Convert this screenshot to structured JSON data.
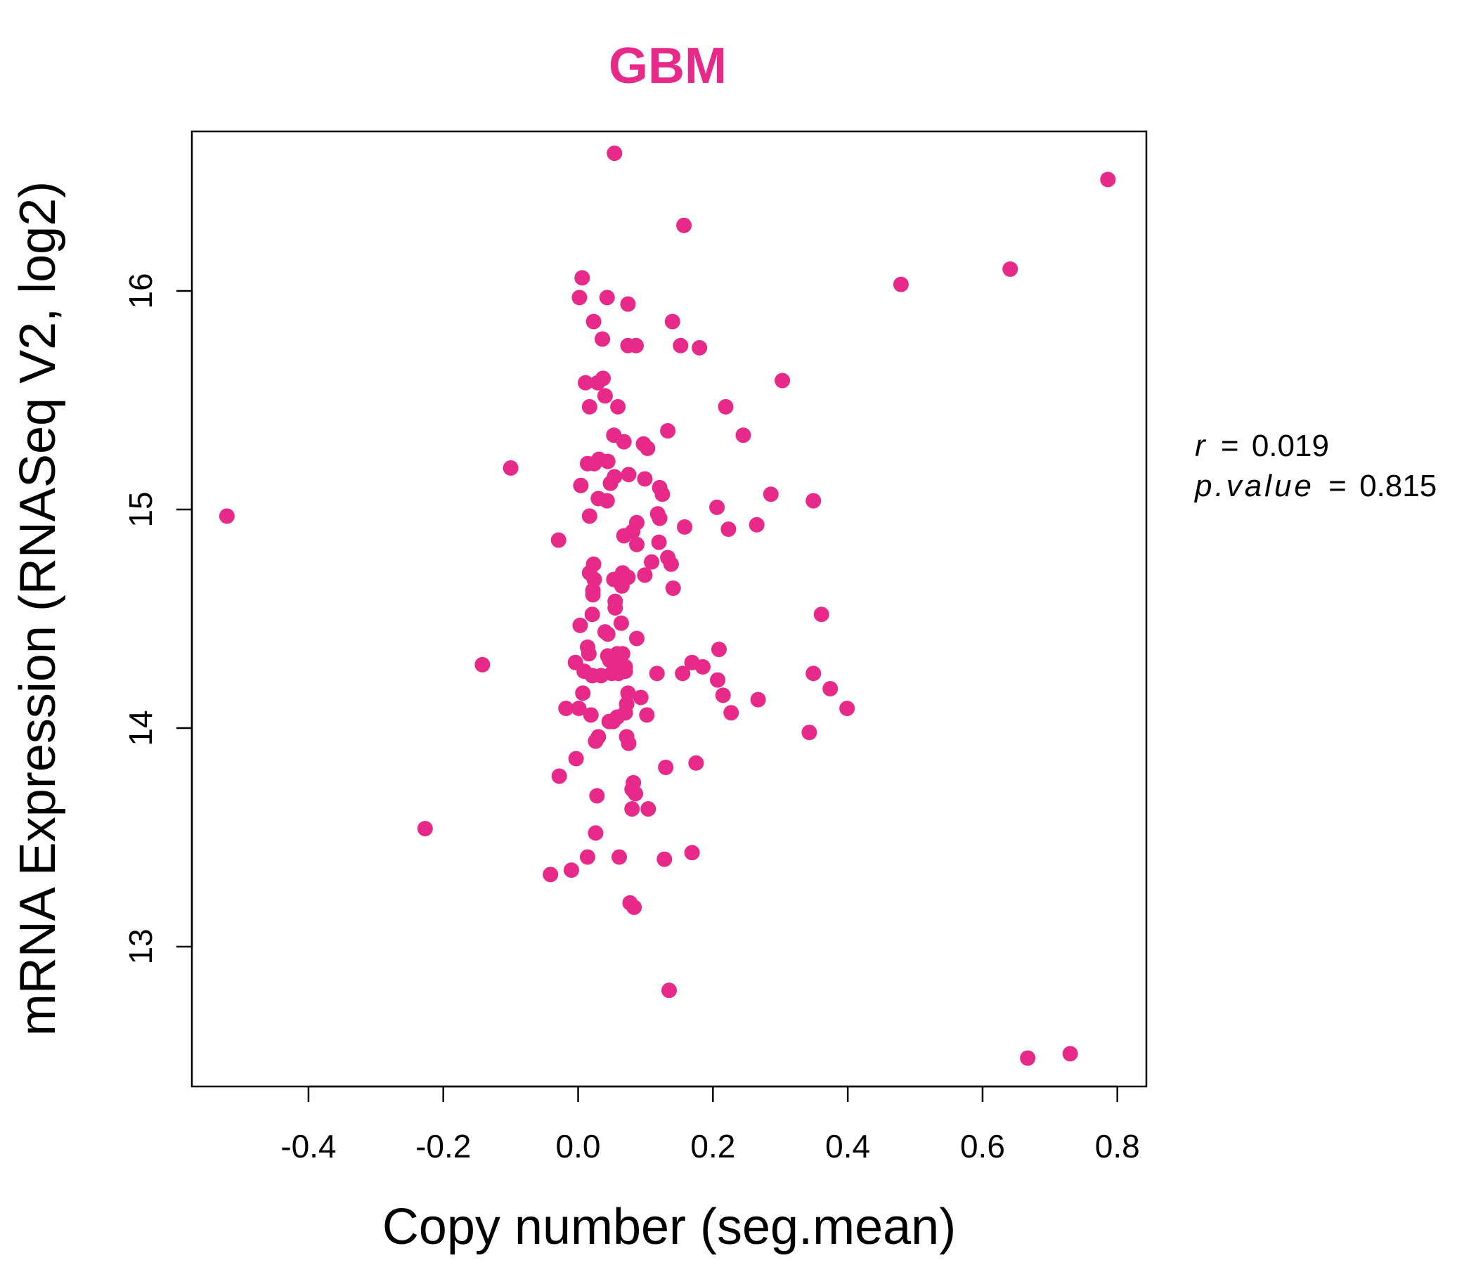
{
  "chart_data": {
    "type": "scatter",
    "title": "GBM",
    "xlabel": "Copy number (seg.mean)",
    "ylabel": "mRNA Expression (RNASeq V2, log2)",
    "xlim": [
      -0.573,
      0.843
    ],
    "ylim": [
      12.36,
      16.73
    ],
    "xticks": [
      -0.4,
      -0.2,
      0.0,
      0.2,
      0.4,
      0.6,
      0.8
    ],
    "xtick_labels": [
      "-0.4",
      "-0.2",
      "0.0",
      "0.2",
      "0.4",
      "0.6",
      "0.8"
    ],
    "yticks": [
      13,
      14,
      15,
      16
    ],
    "ytick_labels": [
      "13",
      "14",
      "15",
      "16"
    ],
    "grid": false,
    "legend": null,
    "point_color": "#e7298a",
    "stats": {
      "r_label": "r",
      "r_value": "0.019",
      "p_label": "p.value",
      "p_value": "0.815"
    },
    "points": [
      [
        0.054,
        16.63
      ],
      [
        0.786,
        16.51
      ],
      [
        0.157,
        16.3
      ],
      [
        0.641,
        16.1
      ],
      [
        0.479,
        16.03
      ],
      [
        0.006,
        16.06
      ],
      [
        0.002,
        15.97
      ],
      [
        0.043,
        15.97
      ],
      [
        0.074,
        15.94
      ],
      [
        0.023,
        15.86
      ],
      [
        0.14,
        15.86
      ],
      [
        0.036,
        15.78
      ],
      [
        0.074,
        15.75
      ],
      [
        0.086,
        15.75
      ],
      [
        0.152,
        15.75
      ],
      [
        0.18,
        15.74
      ],
      [
        0.303,
        15.59
      ],
      [
        0.011,
        15.58
      ],
      [
        0.029,
        15.58
      ],
      [
        0.037,
        15.6
      ],
      [
        0.04,
        15.52
      ],
      [
        0.017,
        15.47
      ],
      [
        0.059,
        15.47
      ],
      [
        0.219,
        15.47
      ],
      [
        0.133,
        15.36
      ],
      [
        0.053,
        15.34
      ],
      [
        0.068,
        15.31
      ],
      [
        0.097,
        15.3
      ],
      [
        0.103,
        15.28
      ],
      [
        0.245,
        15.34
      ],
      [
        -0.1,
        15.19
      ],
      [
        0.014,
        15.21
      ],
      [
        0.024,
        15.21
      ],
      [
        0.031,
        15.23
      ],
      [
        0.044,
        15.22
      ],
      [
        0.054,
        15.15
      ],
      [
        0.075,
        15.16
      ],
      [
        0.099,
        15.14
      ],
      [
        0.004,
        15.11
      ],
      [
        0.048,
        15.12
      ],
      [
        0.121,
        15.1
      ],
      [
        0.125,
        15.07
      ],
      [
        0.286,
        15.07
      ],
      [
        0.03,
        15.05
      ],
      [
        0.043,
        15.04
      ],
      [
        0.206,
        15.01
      ],
      [
        0.349,
        15.04
      ],
      [
        0.017,
        14.97
      ],
      [
        0.118,
        14.98
      ],
      [
        0.121,
        14.96
      ],
      [
        0.087,
        14.94
      ],
      [
        0.158,
        14.92
      ],
      [
        0.223,
        14.91
      ],
      [
        0.265,
        14.93
      ],
      [
        0.081,
        14.9
      ],
      [
        0.068,
        14.88
      ],
      [
        -0.029,
        14.86
      ],
      [
        0.087,
        14.84
      ],
      [
        0.12,
        14.85
      ],
      [
        0.023,
        14.75
      ],
      [
        0.109,
        14.76
      ],
      [
        0.133,
        14.78
      ],
      [
        0.138,
        14.75
      ],
      [
        0.017,
        14.71
      ],
      [
        0.066,
        14.71
      ],
      [
        0.074,
        14.69
      ],
      [
        0.099,
        14.7
      ],
      [
        0.053,
        14.68
      ],
      [
        0.024,
        14.68
      ],
      [
        0.065,
        14.65
      ],
      [
        0.022,
        14.63
      ],
      [
        0.141,
        14.64
      ],
      [
        0.022,
        14.61
      ],
      [
        0.055,
        14.58
      ],
      [
        0.055,
        14.55
      ],
      [
        0.361,
        14.52
      ],
      [
        0.021,
        14.52
      ],
      [
        0.064,
        14.48
      ],
      [
        0.003,
        14.47
      ],
      [
        0.04,
        14.44
      ],
      [
        0.044,
        14.43
      ],
      [
        0.087,
        14.41
      ],
      [
        0.014,
        14.37
      ],
      [
        0.209,
        14.36
      ],
      [
        0.016,
        14.34
      ],
      [
        0.044,
        14.33
      ],
      [
        0.058,
        14.34
      ],
      [
        0.066,
        14.34
      ],
      [
        0.047,
        14.31
      ],
      [
        -0.004,
        14.3
      ],
      [
        -0.142,
        14.29
      ],
      [
        0.06,
        14.29
      ],
      [
        0.07,
        14.28
      ],
      [
        0.169,
        14.3
      ],
      [
        0.185,
        14.28
      ],
      [
        0.009,
        14.26
      ],
      [
        0.021,
        14.24
      ],
      [
        0.034,
        14.24
      ],
      [
        0.05,
        14.25
      ],
      [
        0.06,
        14.25
      ],
      [
        0.07,
        14.26
      ],
      [
        0.117,
        14.25
      ],
      [
        0.155,
        14.25
      ],
      [
        0.207,
        14.22
      ],
      [
        0.349,
        14.25
      ],
      [
        0.374,
        14.18
      ],
      [
        0.007,
        14.16
      ],
      [
        0.074,
        14.16
      ],
      [
        0.093,
        14.14
      ],
      [
        0.215,
        14.15
      ],
      [
        0.267,
        14.13
      ],
      [
        0.072,
        14.11
      ],
      [
        -0.018,
        14.09
      ],
      [
        0.001,
        14.09
      ],
      [
        0.019,
        14.06
      ],
      [
        0.07,
        14.07
      ],
      [
        0.102,
        14.06
      ],
      [
        0.227,
        14.07
      ],
      [
        0.399,
        14.09
      ],
      [
        0.058,
        14.05
      ],
      [
        0.046,
        14.03
      ],
      [
        0.052,
        14.03
      ],
      [
        0.343,
        13.98
      ],
      [
        0.03,
        13.96
      ],
      [
        0.072,
        13.96
      ],
      [
        0.026,
        13.94
      ],
      [
        0.075,
        13.93
      ],
      [
        -0.003,
        13.86
      ],
      [
        0.175,
        13.84
      ],
      [
        0.13,
        13.82
      ],
      [
        -0.028,
        13.78
      ],
      [
        0.082,
        13.75
      ],
      [
        0.08,
        13.72
      ],
      [
        0.085,
        13.7
      ],
      [
        0.028,
        13.69
      ],
      [
        0.08,
        13.63
      ],
      [
        0.104,
        13.63
      ],
      [
        -0.227,
        13.54
      ],
      [
        0.026,
        13.52
      ],
      [
        0.169,
        13.43
      ],
      [
        0.014,
        13.41
      ],
      [
        0.061,
        13.41
      ],
      [
        0.128,
        13.4
      ],
      [
        -0.01,
        13.35
      ],
      [
        -0.041,
        13.33
      ],
      [
        0.077,
        13.2
      ],
      [
        0.083,
        13.18
      ],
      [
        0.135,
        12.8
      ],
      [
        0.73,
        12.51
      ],
      [
        0.667,
        12.49
      ],
      [
        -0.521,
        14.97
      ]
    ]
  }
}
